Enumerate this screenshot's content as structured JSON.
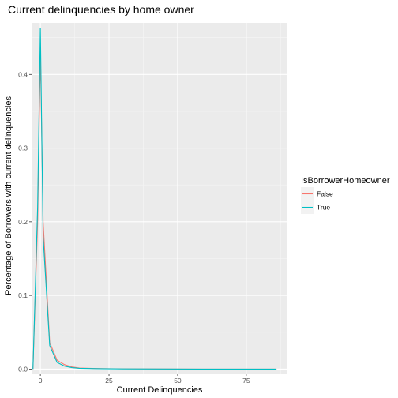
{
  "chart_data": {
    "type": "line",
    "title": "Current delinquencies by home owner",
    "xlabel": "Current Delinquencies",
    "ylabel": "Percentage of Borrowers with current delinquencies",
    "xlim": [
      -3.2,
      90
    ],
    "ylim": [
      -0.006,
      0.47
    ],
    "x_ticks": [
      0,
      25,
      50,
      75
    ],
    "x_tick_labels": [
      "0",
      "25",
      "50",
      "75"
    ],
    "y_ticks": [
      0.0,
      0.1,
      0.2,
      0.3,
      0.4
    ],
    "y_tick_labels": [
      "0.0",
      "0.1",
      "0.2",
      "0.3",
      "0.4"
    ],
    "grid": true,
    "legend": {
      "title": "IsBorrowerHomeowner",
      "position": "right"
    },
    "series": [
      {
        "name": "False",
        "color": "#F8766D",
        "x": [
          -2.7,
          -1,
          0,
          1,
          3.4,
          6.1,
          8.8,
          11.5,
          14.2,
          20,
          30,
          45,
          60,
          86
        ],
        "y": [
          0,
          0.2,
          0.43,
          0.2,
          0.036,
          0.012,
          0.006,
          0.003,
          0.0015,
          0.0008,
          0.0003,
          0.0001,
          0,
          0
        ]
      },
      {
        "name": "True",
        "color": "#00BFC4",
        "x": [
          -2.7,
          -1,
          0,
          1,
          3.4,
          6.1,
          8.8,
          11.5,
          14.2,
          20,
          30,
          45,
          60,
          86
        ],
        "y": [
          0,
          0.22,
          0.463,
          0.18,
          0.032,
          0.009,
          0.004,
          0.002,
          0.001,
          0.0006,
          0.0002,
          0.0001,
          0,
          0
        ]
      }
    ]
  }
}
